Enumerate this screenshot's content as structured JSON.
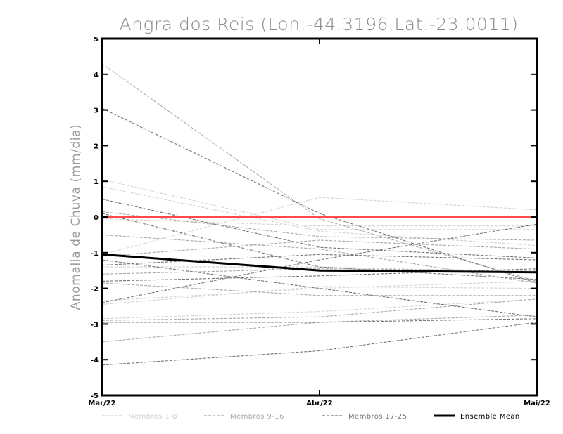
{
  "chart_data": {
    "type": "line",
    "title": "Angra dos Reis (Lon:-44.3196,Lat:-23.0011)",
    "ylabel": "Anomalia de Chuva (mm/dia)",
    "xlabel": "",
    "categories": [
      "Mar/22",
      "Abr/22",
      "Mai/22"
    ],
    "ylim": [
      -5,
      5
    ],
    "yticks": [
      5,
      4,
      3,
      2,
      1,
      0,
      -1,
      -2,
      -3,
      -4,
      -5
    ],
    "reference_line": {
      "value": 0,
      "color": "#ff4a4a"
    },
    "legend": [
      {
        "label": "Membros 1-8",
        "color": "#d3d3d3",
        "style": "dashed"
      },
      {
        "label": "Membros 9-16",
        "color": "#a9a9a9",
        "style": "dashed"
      },
      {
        "label": "Membros 17-25",
        "color": "#737373",
        "style": "dashed"
      },
      {
        "label": "Ensemble Mean",
        "color": "#000000",
        "style": "solid"
      }
    ],
    "groups": [
      {
        "name": "Membros 1-8",
        "color": "#d3d3d3",
        "series": [
          [
            1.05,
            -0.35,
            -0.35
          ],
          [
            0.85,
            -0.4,
            -0.8
          ],
          [
            -1.05,
            0.55,
            0.2
          ],
          [
            -2.45,
            -1.95,
            -2.0
          ],
          [
            -2.85,
            -2.65,
            -2.3
          ],
          [
            -1.4,
            -1.4,
            -1.55
          ],
          [
            -0.05,
            -0.25,
            -0.25
          ],
          [
            -2.35,
            -2.0,
            -1.8
          ]
        ]
      },
      {
        "name": "Membros 9-16",
        "color": "#a9a9a9",
        "series": [
          [
            4.3,
            -0.05,
            -1.8
          ],
          [
            -0.5,
            -0.9,
            -1.85
          ],
          [
            -1.6,
            -1.45,
            -1.5
          ],
          [
            -2.9,
            -2.8,
            -2.3
          ],
          [
            -3.5,
            -2.95,
            -2.75
          ],
          [
            -1.85,
            -2.2,
            -2.2
          ],
          [
            0.15,
            -0.55,
            -0.65
          ],
          [
            -1.1,
            -0.65,
            -0.9
          ]
        ]
      },
      {
        "name": "Membros 17-25",
        "color": "#737373",
        "series": [
          [
            3.05,
            0.1,
            -1.85
          ],
          [
            0.5,
            -0.85,
            -1.15
          ],
          [
            -1.2,
            -2.0,
            -2.8
          ],
          [
            -2.4,
            -1.2,
            -0.2
          ],
          [
            -1.8,
            -1.65,
            -1.45
          ],
          [
            -4.15,
            -3.75,
            -2.95
          ],
          [
            -2.95,
            -2.95,
            -2.85
          ],
          [
            -1.35,
            -1.05,
            -1.2
          ],
          [
            0.1,
            -1.4,
            -1.75
          ]
        ]
      }
    ],
    "mean": {
      "name": "Ensemble Mean",
      "color": "#000000",
      "values": [
        -1.05,
        -1.5,
        -1.55
      ]
    }
  }
}
